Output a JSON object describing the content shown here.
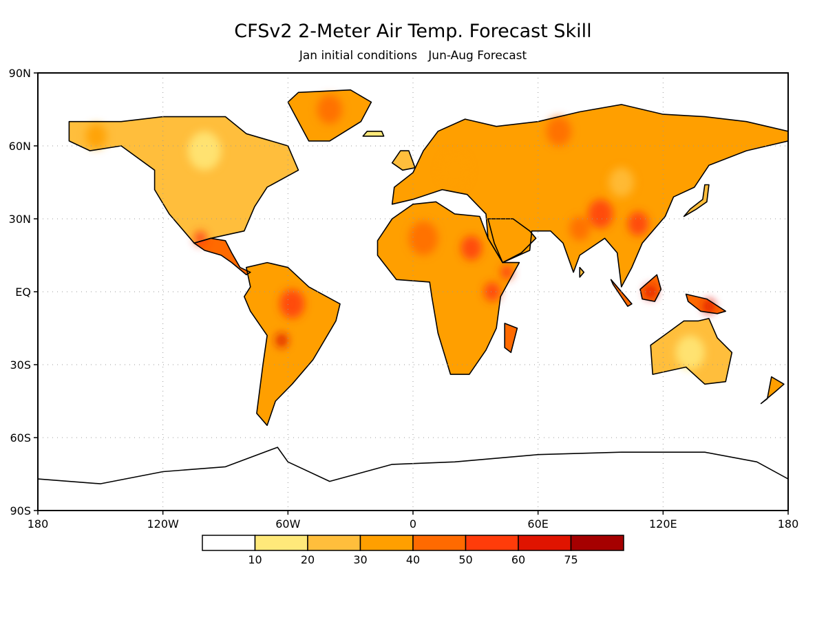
{
  "title": "CFSv2 2-Meter Air Temp. Forecast Skill",
  "subtitle": "Jan initial conditions   Jun-Aug Forecast",
  "axes": {
    "lat_labels": [
      "90N",
      "60N",
      "30N",
      "EQ",
      "30S",
      "60S",
      "90S"
    ],
    "lon_labels": [
      "180",
      "120W",
      "60W",
      "0",
      "60E",
      "120E",
      "180"
    ],
    "lat_range": [
      -90,
      90
    ],
    "lon_range": [
      -180,
      180
    ],
    "grid": "dotted"
  },
  "legend": {
    "placement": "bottom-center",
    "bins": [
      {
        "color": "#ffffff"
      },
      {
        "color": "#ffe97a"
      },
      {
        "color": "#ffbe3c"
      },
      {
        "color": "#ff9f00"
      },
      {
        "color": "#ff6a00"
      },
      {
        "color": "#ff3c0a"
      },
      {
        "color": "#e01400"
      },
      {
        "color": "#a50000"
      }
    ],
    "labels": [
      "10",
      "20",
      "30",
      "40",
      "50",
      "60",
      "75"
    ]
  },
  "regions": [
    {
      "name": "north-america",
      "outline": [
        [
          -165,
          70
        ],
        [
          -140,
          70
        ],
        [
          -120,
          72
        ],
        [
          -90,
          72
        ],
        [
          -80,
          65
        ],
        [
          -60,
          60
        ],
        [
          -55,
          50
        ],
        [
          -70,
          43
        ],
        [
          -76,
          35
        ],
        [
          -81,
          25
        ],
        [
          -97,
          22
        ],
        [
          -105,
          20
        ],
        [
          -117,
          32
        ],
        [
          -124,
          42
        ],
        [
          -124,
          50
        ],
        [
          -140,
          60
        ],
        [
          -155,
          58
        ],
        [
          -165,
          62
        ]
      ],
      "skill": 2
    },
    {
      "name": "central-america",
      "outline": [
        [
          -105,
          20
        ],
        [
          -97,
          22
        ],
        [
          -90,
          21
        ],
        [
          -87,
          16
        ],
        [
          -83,
          10
        ],
        [
          -78,
          8
        ],
        [
          -80,
          7
        ],
        [
          -87,
          12
        ],
        [
          -92,
          15
        ],
        [
          -100,
          17
        ]
      ],
      "skill": 4
    },
    {
      "name": "greenland",
      "outline": [
        [
          -55,
          82
        ],
        [
          -30,
          83
        ],
        [
          -20,
          78
        ],
        [
          -25,
          70
        ],
        [
          -40,
          62
        ],
        [
          -50,
          62
        ],
        [
          -55,
          70
        ],
        [
          -60,
          78
        ]
      ],
      "skill": 3
    },
    {
      "name": "south-america",
      "outline": [
        [
          -80,
          10
        ],
        [
          -70,
          12
        ],
        [
          -60,
          10
        ],
        [
          -50,
          2
        ],
        [
          -35,
          -5
        ],
        [
          -37,
          -12
        ],
        [
          -48,
          -28
        ],
        [
          -58,
          -38
        ],
        [
          -66,
          -45
        ],
        [
          -70,
          -55
        ],
        [
          -75,
          -50
        ],
        [
          -72,
          -30
        ],
        [
          -70,
          -18
        ],
        [
          -78,
          -8
        ],
        [
          -81,
          -2
        ],
        [
          -78,
          2
        ]
      ],
      "skill": 3
    },
    {
      "name": "africa",
      "outline": [
        [
          -17,
          21
        ],
        [
          -10,
          30
        ],
        [
          0,
          36
        ],
        [
          11,
          37
        ],
        [
          20,
          32
        ],
        [
          32,
          31
        ],
        [
          36,
          22
        ],
        [
          43,
          12
        ],
        [
          51,
          12
        ],
        [
          42,
          -2
        ],
        [
          40,
          -15
        ],
        [
          35,
          -24
        ],
        [
          27,
          -34
        ],
        [
          18,
          -34
        ],
        [
          12,
          -17
        ],
        [
          9,
          -2
        ],
        [
          8,
          4
        ],
        [
          -8,
          5
        ],
        [
          -17,
          15
        ]
      ],
      "skill": 3
    },
    {
      "name": "madagascar",
      "outline": [
        [
          44,
          -13
        ],
        [
          50,
          -15
        ],
        [
          47,
          -25
        ],
        [
          44,
          -23
        ]
      ],
      "skill": 4
    },
    {
      "name": "eurasia",
      "outline": [
        [
          -10,
          36
        ],
        [
          -9,
          43
        ],
        [
          0,
          49
        ],
        [
          5,
          58
        ],
        [
          12,
          66
        ],
        [
          25,
          71
        ],
        [
          40,
          68
        ],
        [
          60,
          70
        ],
        [
          80,
          74
        ],
        [
          100,
          77
        ],
        [
          120,
          73
        ],
        [
          140,
          72
        ],
        [
          160,
          70
        ],
        [
          180,
          66
        ],
        [
          180,
          62
        ],
        [
          160,
          58
        ],
        [
          142,
          52
        ],
        [
          135,
          43
        ],
        [
          125,
          39
        ],
        [
          121,
          31
        ],
        [
          110,
          20
        ],
        [
          105,
          10
        ],
        [
          100,
          2
        ],
        [
          98,
          16
        ],
        [
          92,
          22
        ],
        [
          80,
          15
        ],
        [
          77,
          8
        ],
        [
          72,
          20
        ],
        [
          66,
          25
        ],
        [
          57,
          25
        ],
        [
          56,
          17
        ],
        [
          43,
          12
        ],
        [
          36,
          22
        ],
        [
          35,
          32
        ],
        [
          26,
          40
        ],
        [
          14,
          42
        ],
        [
          0,
          38
        ]
      ],
      "skill": 3
    },
    {
      "name": "arabia",
      "outline": [
        [
          36,
          30
        ],
        [
          48,
          30
        ],
        [
          56,
          25
        ],
        [
          59,
          22
        ],
        [
          52,
          16
        ],
        [
          43,
          12
        ],
        [
          39,
          20
        ]
      ],
      "skill": 3
    },
    {
      "name": "uk-ireland",
      "outline": [
        [
          -5,
          50
        ],
        [
          1,
          51
        ],
        [
          -2,
          58
        ],
        [
          -6,
          58
        ],
        [
          -10,
          53
        ]
      ],
      "skill": 2
    },
    {
      "name": "japan",
      "outline": [
        [
          130,
          31
        ],
        [
          136,
          34
        ],
        [
          141,
          37
        ],
        [
          142,
          44
        ],
        [
          140,
          44
        ],
        [
          139,
          38
        ],
        [
          133,
          34
        ]
      ],
      "skill": 2
    },
    {
      "name": "borneo",
      "outline": [
        [
          109,
          1
        ],
        [
          117,
          7
        ],
        [
          119,
          1
        ],
        [
          116,
          -4
        ],
        [
          110,
          -3
        ]
      ],
      "skill": 4
    },
    {
      "name": "sumatra",
      "outline": [
        [
          95,
          5
        ],
        [
          105,
          -5
        ],
        [
          103,
          -6
        ],
        [
          96,
          3
        ]
      ],
      "skill": 4
    },
    {
      "name": "new-guinea",
      "outline": [
        [
          131,
          -1
        ],
        [
          141,
          -3
        ],
        [
          150,
          -8
        ],
        [
          146,
          -9
        ],
        [
          138,
          -8
        ],
        [
          132,
          -4
        ]
      ],
      "skill": 4
    },
    {
      "name": "australia",
      "outline": [
        [
          114,
          -22
        ],
        [
          122,
          -17
        ],
        [
          130,
          -12
        ],
        [
          137,
          -12
        ],
        [
          142,
          -11
        ],
        [
          146,
          -19
        ],
        [
          153,
          -25
        ],
        [
          150,
          -37
        ],
        [
          140,
          -38
        ],
        [
          131,
          -31
        ],
        [
          115,
          -34
        ]
      ],
      "skill": 2
    },
    {
      "name": "new-zealand",
      "outline": [
        [
          172,
          -35
        ],
        [
          178,
          -38
        ],
        [
          174,
          -41
        ],
        [
          167,
          -46
        ],
        [
          170,
          -44
        ]
      ],
      "skill": 3
    },
    {
      "name": "antarctica",
      "outline": [
        [
          -180,
          -77
        ],
        [
          -150,
          -79
        ],
        [
          -120,
          -74
        ],
        [
          -90,
          -72
        ],
        [
          -65,
          -64
        ],
        [
          -60,
          -70
        ],
        [
          -40,
          -78
        ],
        [
          -10,
          -71
        ],
        [
          20,
          -70
        ],
        [
          60,
          -67
        ],
        [
          100,
          -66
        ],
        [
          140,
          -66
        ],
        [
          165,
          -70
        ],
        [
          180,
          -77
        ],
        [
          180,
          -90
        ],
        [
          -180,
          -90
        ]
      ],
      "skill": 0
    },
    {
      "name": "iceland",
      "outline": [
        [
          -24,
          64
        ],
        [
          -14,
          64
        ],
        [
          -15,
          66
        ],
        [
          -22,
          66
        ]
      ],
      "skill": 1
    },
    {
      "name": "sri-lanka",
      "outline": [
        [
          80,
          6
        ],
        [
          82,
          8
        ],
        [
          80,
          10
        ]
      ],
      "skill": 2
    }
  ],
  "hotspots": [
    {
      "name": "tibet",
      "lon": 90,
      "lat": 32,
      "r": 6,
      "skill": 5
    },
    {
      "name": "amazon",
      "lon": -58,
      "lat": -5,
      "r": 6,
      "skill": 5
    },
    {
      "name": "east-africa",
      "lon": 38,
      "lat": 0,
      "r": 4,
      "skill": 5
    },
    {
      "name": "sahara",
      "lon": 5,
      "lat": 22,
      "r": 7,
      "skill": 4
    },
    {
      "name": "north-africa-east",
      "lon": 28,
      "lat": 18,
      "r": 5,
      "skill": 5
    },
    {
      "name": "siberia-north",
      "lon": 70,
      "lat": 66,
      "r": 6,
      "skill": 4
    },
    {
      "name": "china-south",
      "lon": 108,
      "lat": 28,
      "r": 5,
      "skill": 5
    },
    {
      "name": "mexico",
      "lon": -102,
      "lat": 22,
      "r": 3,
      "skill": 5
    },
    {
      "name": "bolivia",
      "lon": -63,
      "lat": -20,
      "r": 3,
      "skill": 6
    },
    {
      "name": "borneo-core",
      "lon": 114,
      "lat": 0,
      "r": 3,
      "skill": 6
    },
    {
      "name": "new-guinea-core",
      "lon": 142,
      "lat": -6,
      "r": 3,
      "skill": 6
    },
    {
      "name": "india-north",
      "lon": 80,
      "lat": 26,
      "r": 5,
      "skill": 4
    },
    {
      "name": "alaska",
      "lon": -152,
      "lat": 64,
      "r": 5,
      "skill": 3
    },
    {
      "name": "greenland-core",
      "lon": -40,
      "lat": 75,
      "r": 6,
      "skill": 4
    },
    {
      "name": "horn-africa",
      "lon": 45,
      "lat": 8,
      "r": 3,
      "skill": 5
    },
    {
      "name": "mongolia",
      "lon": 100,
      "lat": 45,
      "r": 6,
      "skill": 2
    },
    {
      "name": "europe",
      "lon": 20,
      "lat": 50,
      "r": 7,
      "skill": 3
    },
    {
      "name": "australia-central",
      "lon": 133,
      "lat": -25,
      "r": 7,
      "skill": 1
    },
    {
      "name": "canada-central",
      "lon": -100,
      "lat": 58,
      "r": 8,
      "skill": 1
    }
  ]
}
